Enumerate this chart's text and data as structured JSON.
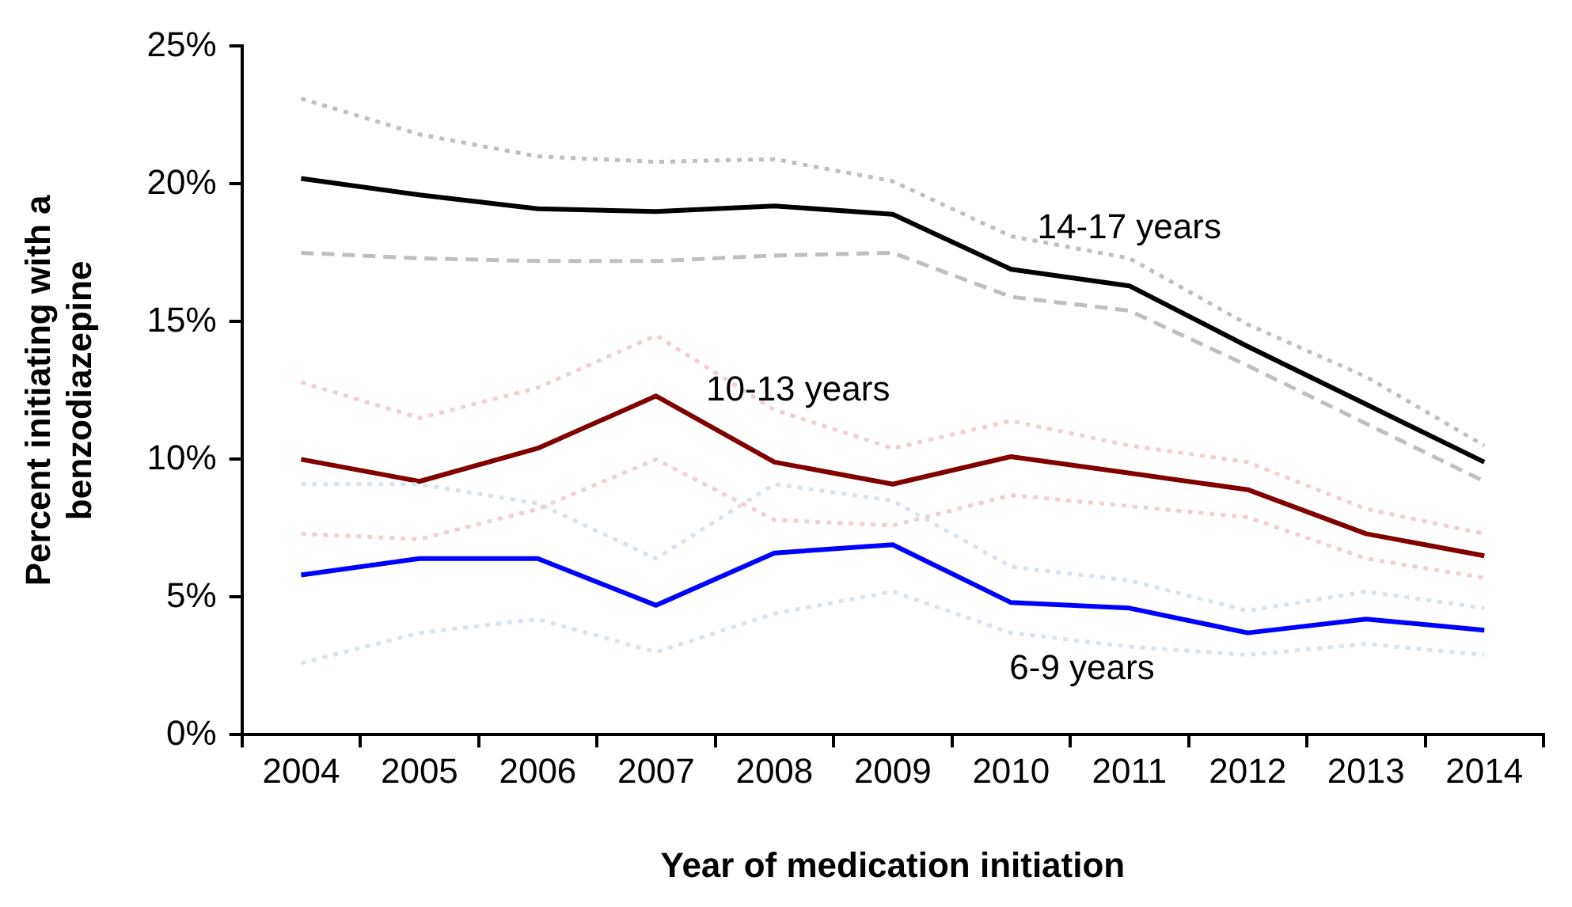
{
  "chart_data": {
    "type": "line",
    "xlabel": "Year of medication initiation",
    "ylabel": "Percent initiating with a benzodiazepine",
    "categories": [
      "2004",
      "2005",
      "2006",
      "2007",
      "2008",
      "2009",
      "2010",
      "2011",
      "2012",
      "2013",
      "2014"
    ],
    "series": [
      {
        "color": "#bfbfbf",
        "line_style": "dotted",
        "values": [
          23.1,
          21.8,
          21.0,
          20.8,
          20.9,
          20.1,
          18.1,
          17.3,
          14.9,
          13.0,
          10.5
        ]
      },
      {
        "color": "#bfbfbf",
        "line_style": "dashed",
        "values": [
          17.5,
          17.3,
          17.2,
          17.2,
          17.4,
          17.5,
          15.9,
          15.4,
          13.4,
          11.3,
          9.2
        ]
      },
      {
        "color": "#f0d0d0",
        "line_style": "dotted",
        "values": [
          12.8,
          11.5,
          12.6,
          14.5,
          11.8,
          10.4,
          11.4,
          10.5,
          9.9,
          8.2,
          7.3
        ]
      },
      {
        "color": "#f0d0d0",
        "line_style": "dotted",
        "values": [
          7.3,
          7.1,
          8.2,
          10.0,
          7.8,
          7.6,
          8.7,
          8.3,
          7.9,
          6.4,
          5.7
        ]
      },
      {
        "color": "#d9e3f0",
        "line_style": "dotted",
        "values": [
          9.1,
          9.1,
          8.4,
          6.4,
          9.1,
          8.5,
          6.1,
          5.6,
          4.5,
          5.2,
          4.6
        ]
      },
      {
        "color": "#d9e3f0",
        "line_style": "dotted",
        "values": [
          2.6,
          3.7,
          4.2,
          3.0,
          4.4,
          5.2,
          3.7,
          3.2,
          2.9,
          3.3,
          2.9
        ]
      },
      {
        "name": "14-17 years",
        "color": "#000000",
        "values": [
          20.2,
          19.6,
          19.1,
          19.0,
          19.2,
          18.9,
          16.9,
          16.3,
          14.1,
          12.0,
          9.9
        ]
      },
      {
        "name": "10-13 years",
        "color": "#800000",
        "values": [
          10.0,
          9.2,
          10.4,
          12.3,
          9.9,
          9.1,
          10.1,
          9.5,
          8.9,
          7.3,
          6.5
        ]
      },
      {
        "name": "6-9 years",
        "color": "#0000ff",
        "values": [
          5.8,
          6.4,
          6.4,
          4.7,
          6.6,
          6.9,
          4.8,
          4.6,
          3.7,
          4.2,
          3.8
        ]
      }
    ],
    "ylim": [
      0,
      25
    ],
    "yticks": [
      {
        "value": 0,
        "label": "0%"
      },
      {
        "value": 5,
        "label": "5%"
      },
      {
        "value": 10,
        "label": "10%"
      },
      {
        "value": 15,
        "label": "15%"
      },
      {
        "value": 20,
        "label": "20%"
      },
      {
        "value": 25,
        "label": "25%"
      }
    ],
    "grid": false,
    "legend": false,
    "marker": "none",
    "line_style": "solid"
  }
}
